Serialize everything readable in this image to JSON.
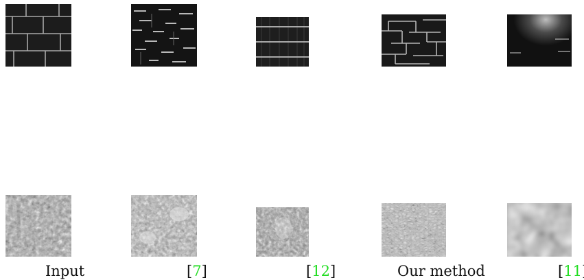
{
  "figure": {
    "rows": [
      {
        "name": "brick-wall-texture-row"
      },
      {
        "name": "stone-texture-row"
      }
    ],
    "columns": [
      {
        "label": "Input"
      },
      {
        "label": "",
        "citation": "7"
      },
      {
        "label": "",
        "citation": "12"
      },
      {
        "label": "Our method"
      },
      {
        "label": "",
        "citation": "11"
      }
    ]
  },
  "colors": {
    "citation": "#22dd22",
    "text": "#111111"
  }
}
